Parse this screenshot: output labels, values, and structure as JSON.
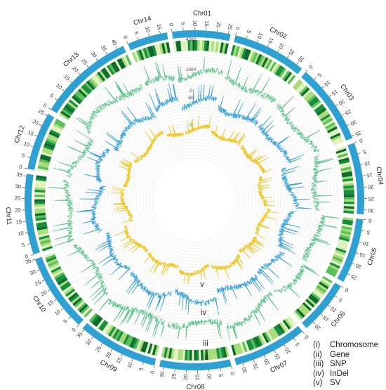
{
  "chart_data": {
    "type": "circos",
    "chromosomes": [
      {
        "name": "Chr01",
        "length": 26
      },
      {
        "name": "Chr02",
        "length": 33
      },
      {
        "name": "Chr03",
        "length": 36
      },
      {
        "name": "Chr04",
        "length": 32
      },
      {
        "name": "Chr05",
        "length": 29
      },
      {
        "name": "Chr06",
        "length": 24
      },
      {
        "name": "Chr07",
        "length": 33
      },
      {
        "name": "Chr08",
        "length": 32
      },
      {
        "name": "Chr09",
        "length": 36
      },
      {
        "name": "Chr10",
        "length": 35
      },
      {
        "name": "Chr11",
        "length": 36
      },
      {
        "name": "Chr12",
        "length": 26
      },
      {
        "name": "Chr13",
        "length": 43
      },
      {
        "name": "Chr14",
        "length": 18
      }
    ],
    "tick_step": 5,
    "tracks": [
      {
        "id": "i",
        "name": "Chromosome",
        "color": "#2ea1d2"
      },
      {
        "id": "ii",
        "name": "Gene",
        "colors": [
          "#dff2bf",
          "#a9dc7a",
          "#5cbf5d",
          "#178f3f",
          "#0b6a2c"
        ]
      },
      {
        "id": "iii",
        "name": "SNP",
        "color": "#5cc28a",
        "axis_max": "4500",
        "axis_min": "0"
      },
      {
        "id": "iv",
        "name": "InDel",
        "color": "#3da3d6",
        "axis_max": "1000",
        "axis_min": "0"
      },
      {
        "id": "v",
        "name": "SV",
        "color": "#f0c419",
        "axis_max": "60",
        "axis_min": "0"
      }
    ]
  },
  "legend": [
    {
      "num": "(i)",
      "label": "Chromosome"
    },
    {
      "num": "(ii)",
      "label": "Gene"
    },
    {
      "num": "(iii)",
      "label": "SNP"
    },
    {
      "num": "(iv)",
      "label": "InDel"
    },
    {
      "num": "(v)",
      "label": "SV"
    }
  ]
}
